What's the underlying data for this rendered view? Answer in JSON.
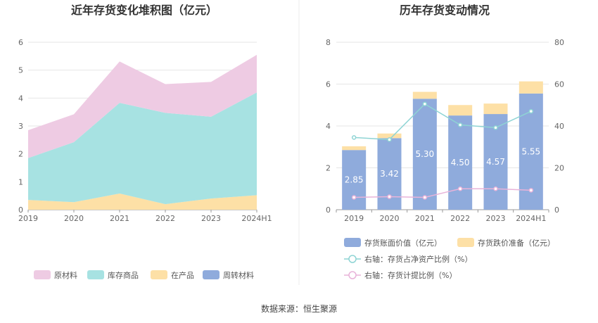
{
  "source": "数据来源：恒生聚源",
  "chart_data": [
    {
      "type": "area",
      "stacked": true,
      "title": "近年存货变化堆积图（亿元）",
      "categories": [
        "2019",
        "2020",
        "2021",
        "2022",
        "2023",
        "2024H1"
      ],
      "ylim": [
        0,
        6
      ],
      "yticks": [
        0,
        1,
        2,
        3,
        4,
        5,
        6
      ],
      "grid": true,
      "legend_position": "bottom",
      "series": [
        {
          "name": "周转材料",
          "color": "#8fabdc",
          "values": [
            0,
            0,
            0,
            0,
            0,
            0
          ]
        },
        {
          "name": "在产品",
          "color": "#fde0a6",
          "values": [
            0.35,
            0.27,
            0.58,
            0.2,
            0.4,
            0.52
          ]
        },
        {
          "name": "库存商品",
          "color": "#a7e2e2",
          "values": [
            1.5,
            2.15,
            3.25,
            3.27,
            2.93,
            3.68
          ]
        },
        {
          "name": "原材料",
          "color": "#eecbe3",
          "values": [
            1.0,
            1.0,
            1.48,
            1.03,
            1.25,
            1.35
          ]
        }
      ],
      "legend_order": [
        "原材料",
        "库存商品",
        "在产品",
        "周转材料"
      ]
    },
    {
      "type": "bar",
      "stacked": true,
      "title": "历年存货变动情况",
      "categories": [
        "2019",
        "2020",
        "2021",
        "2022",
        "2023",
        "2024H1"
      ],
      "ylim": [
        0,
        8
      ],
      "yticks": [
        0,
        2,
        4,
        6,
        8
      ],
      "y2lim": [
        0,
        80
      ],
      "y2ticks": [
        0,
        20,
        40,
        60,
        80
      ],
      "grid": true,
      "legend_position": "bottom",
      "series": [
        {
          "name": "存货账面价值（亿元）",
          "color": "#8fabdc",
          "values": [
            2.85,
            3.42,
            5.3,
            4.5,
            4.57,
            5.55
          ],
          "labels": [
            "2.85",
            "3.42",
            "5.30",
            "4.50",
            "4.57",
            "5.55"
          ]
        },
        {
          "name": "存货跌价准备（亿元）",
          "color": "#fde0a6",
          "values": [
            0.18,
            0.22,
            0.33,
            0.5,
            0.5,
            0.58
          ]
        }
      ],
      "lines": [
        {
          "name": "右轴：存货占净资产比例（%）",
          "color": "#8ed4d4",
          "axis": "right",
          "values": [
            34.5,
            33.5,
            50.5,
            40.5,
            39.2,
            47
          ]
        },
        {
          "name": "右轴：存货计提比例（%）",
          "color": "#e8b3d9",
          "axis": "right",
          "values": [
            5.9,
            6.2,
            5.9,
            10,
            10,
            9.3
          ]
        }
      ]
    }
  ]
}
